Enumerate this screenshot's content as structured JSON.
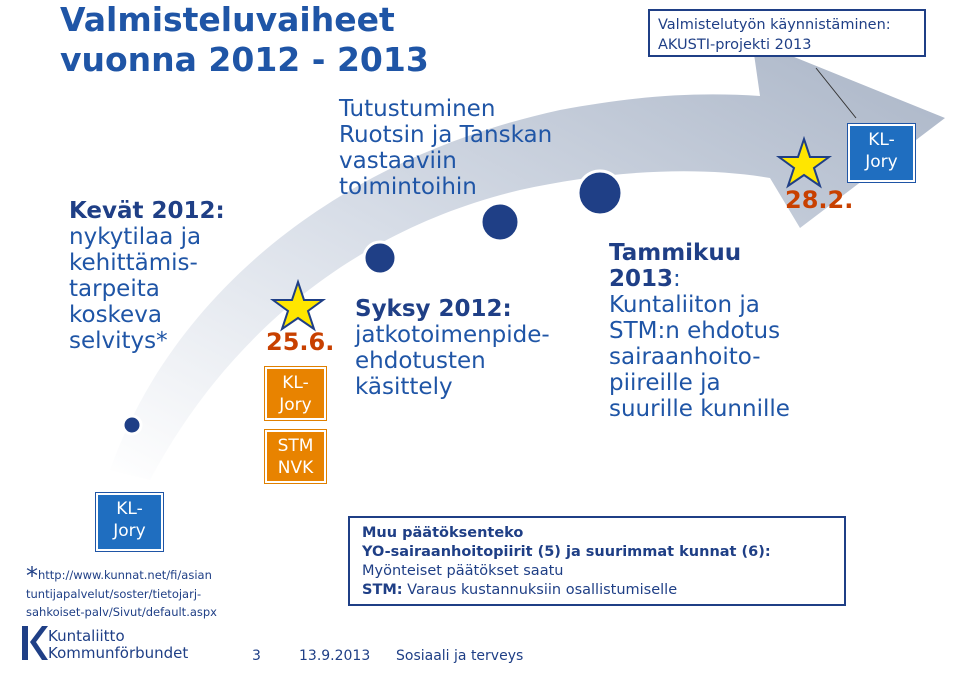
{
  "title": {
    "line1": "Valmisteluvaiheet",
    "line2": "vuonna 2012 - 2013"
  },
  "top_box": {
    "line1": "Valmistelutyön käynnistäminen:",
    "line2": "AKUSTI-projekti 2013"
  },
  "steps": [
    {
      "heading": "Kevät 2012:",
      "body": [
        "nykytilaa ja",
        "kehittämis-",
        "tarpeita",
        "koskeva",
        "selvitys*"
      ]
    },
    {
      "heading": "",
      "body": [
        "Tutustuminen",
        "Ruotsin ja Tanskan",
        "vastaaviin",
        "toimintoihin"
      ]
    },
    {
      "heading": "Syksy 2012:",
      "body": [
        "jatkotoimenpide-",
        "ehdotusten",
        "käsittely"
      ]
    },
    {
      "heading": "Tammikuu",
      "heading2": "2013",
      "body": [
        "Kuntaliiton ja",
        "STM:n ehdotus",
        "sairaanhoito-",
        "piireille ja",
        "suurille kunnille"
      ]
    }
  ],
  "dates": {
    "first": "25.6.",
    "second": "28.2."
  },
  "labels": {
    "kl_jory_1": [
      "KL-",
      "Jory"
    ],
    "stm_nvk": [
      "STM",
      "NVK"
    ],
    "kl_jory_2": [
      "KL-",
      "Jory"
    ],
    "kl_jory_3": [
      "KL-",
      "Jory"
    ]
  },
  "footnote": {
    "star": "*",
    "line1": "http://www.kunnat.net/fi/asian",
    "line2": "tuntijapalvelut/soster/tietojarj-",
    "line3": "sahkoiset-palv/Sivut/default.aspx"
  },
  "bottom_box": {
    "line1": "Muu päätöksenteko",
    "line2": "YO-sairaanhoitopiirit (5) ja suurimmat kunnat (6):",
    "line3": "Myönteiset päätökset saatu",
    "line4_bold": "STM:",
    "line4_rest": " Varaus kustannuksiin osallistumiselle"
  },
  "logo": {
    "line1": "Kuntaliitto",
    "line2": "Kommunförbundet"
  },
  "footer": {
    "page": "3",
    "date": "13.9.2013",
    "text": "Sosiaali ja terveys"
  },
  "colors": {
    "arrow": "#b9c3d3",
    "dot": "#1f3f86",
    "star": "#ffe600",
    "accent_orange": "#e88300",
    "accent_blue": "#1f6ec0",
    "title": "#1f55a6"
  }
}
